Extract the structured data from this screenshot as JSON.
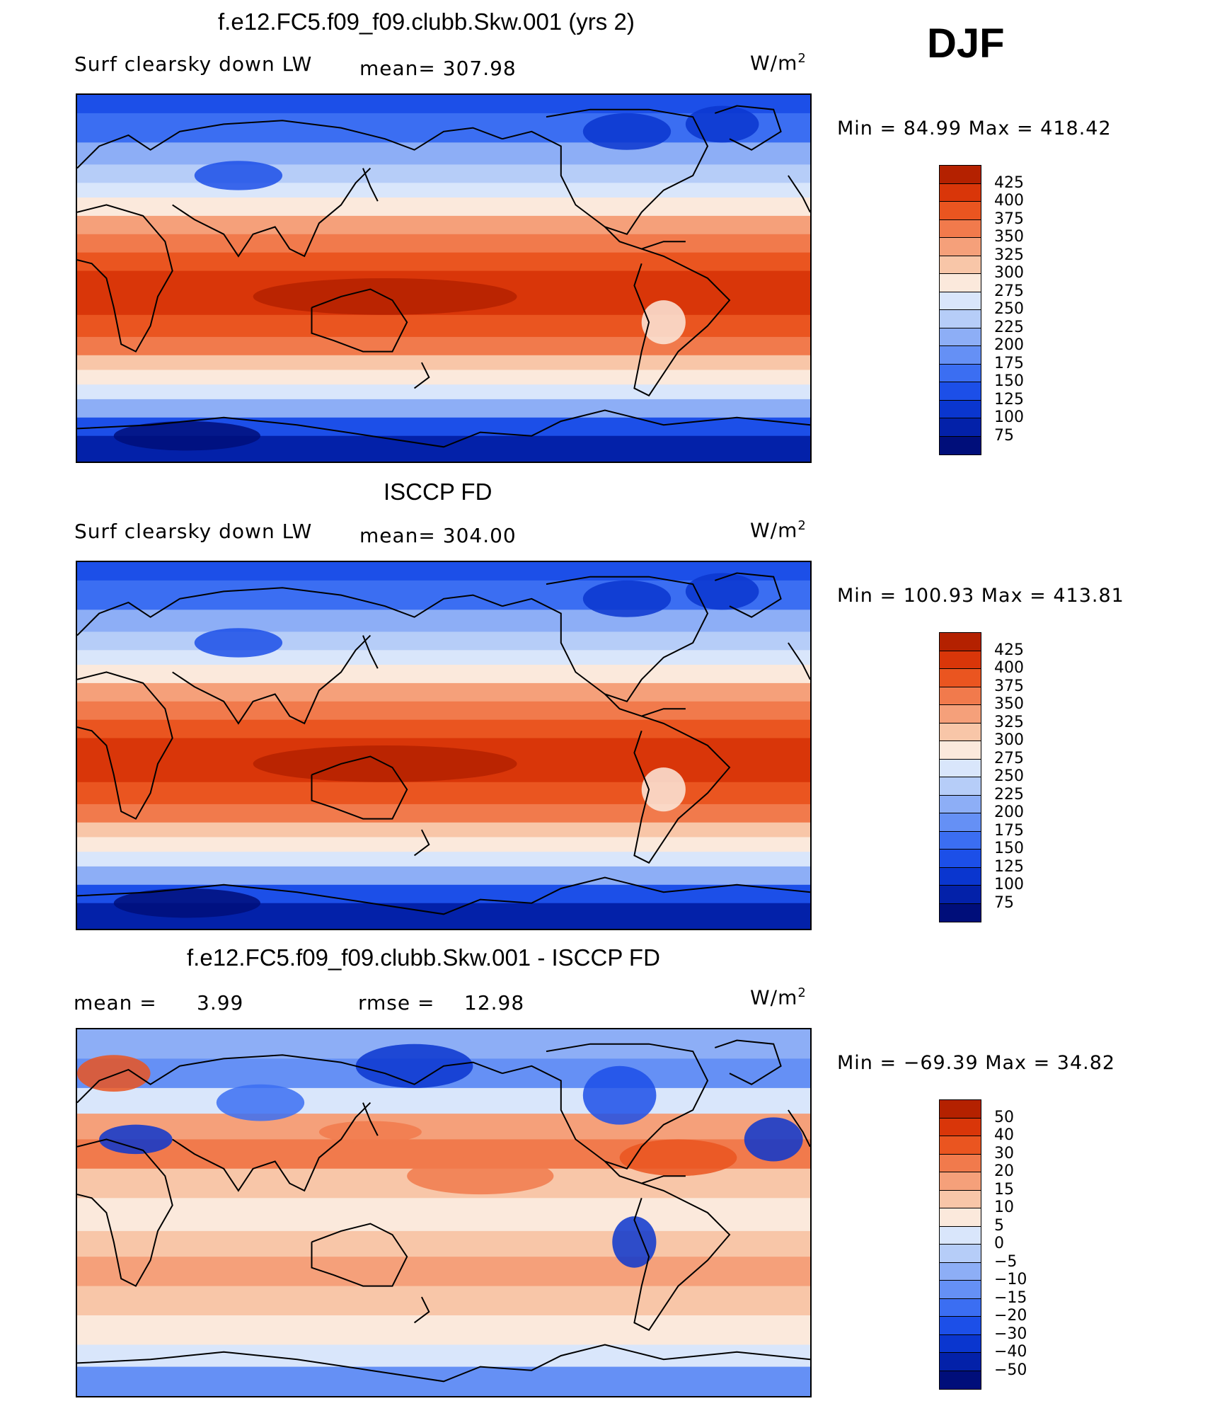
{
  "season": "DJF",
  "units": {
    "base": "W/m",
    "exp": "2"
  },
  "panels": [
    {
      "title": "f.e12.FC5.f09_f09.clubb.Skw.001 (yrs 2)",
      "left_label": "Surf clearsky down LW",
      "center_label": "mean=  307.98",
      "minmax": "Min =   84.99 Max = 418.42",
      "palette": "abs",
      "chart_data": {
        "type": "heatmap",
        "field": "Surf clearsky down LW",
        "units": "W/m2",
        "mean": 307.98,
        "min": 84.99,
        "max": 418.42,
        "levels": [
          75,
          100,
          125,
          150,
          175,
          200,
          225,
          250,
          275,
          300,
          325,
          350,
          375,
          400,
          425
        ]
      }
    },
    {
      "title": "ISCCP FD",
      "left_label": "Surf clearsky down LW",
      "center_label": "mean=  304.00",
      "minmax": "Min = 100.93 Max = 413.81",
      "palette": "abs",
      "chart_data": {
        "type": "heatmap",
        "field": "Surf clearsky down LW",
        "units": "W/m2",
        "mean": 304.0,
        "min": 100.93,
        "max": 413.81,
        "levels": [
          75,
          100,
          125,
          150,
          175,
          200,
          225,
          250,
          275,
          300,
          325,
          350,
          375,
          400,
          425
        ]
      }
    },
    {
      "title": "f.e12.FC5.f09_f09.clubb.Skw.001 - ISCCP FD",
      "left_label": "mean =",
      "left_value": "3.99",
      "center_label": "rmse =",
      "center_value": "12.98",
      "minmax": "Min = −69.39 Max =   34.82",
      "palette": "diff",
      "chart_data": {
        "type": "heatmap",
        "field": "difference",
        "units": "W/m2",
        "mean": 3.99,
        "rmse": 12.98,
        "min": -69.39,
        "max": 34.82,
        "levels": [
          -50,
          -40,
          -30,
          -20,
          -15,
          -10,
          -5,
          0,
          5,
          10,
          15,
          20,
          30,
          40,
          50
        ]
      }
    }
  ],
  "palettes": {
    "abs": [
      "#000e7a",
      "#0321a9",
      "#0a36cf",
      "#1c4fe8",
      "#3b6ef2",
      "#6590f5",
      "#8daef6",
      "#b6cdf8",
      "#d9e6fb",
      "#fbe9dc",
      "#f8c6a8",
      "#f5a07a",
      "#f17a4c",
      "#ea5520",
      "#d93609",
      "#b42100",
      "#860000"
    ],
    "diff": [
      "#000e7a",
      "#0321a9",
      "#0a36cf",
      "#1c4fe8",
      "#3b6ef2",
      "#6590f5",
      "#8daef6",
      "#b6cdf8",
      "#d9e6fb",
      "#fbe9dc",
      "#f8c6a8",
      "#f5a07a",
      "#f17a4c",
      "#ea5520",
      "#d93609",
      "#b42100",
      "#860000"
    ]
  }
}
